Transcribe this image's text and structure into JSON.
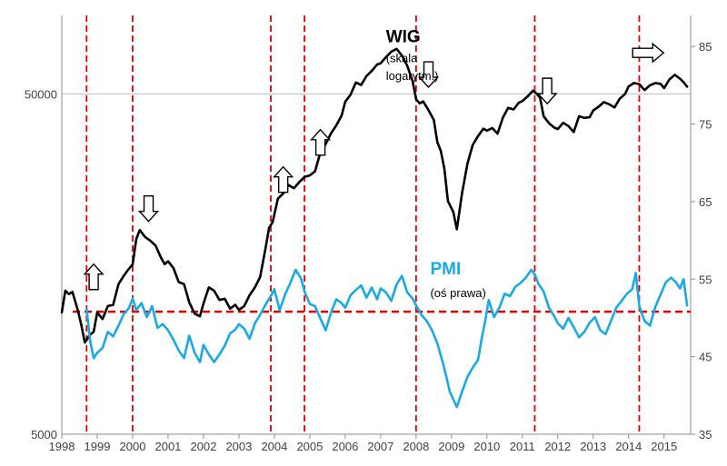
{
  "chart_data": {
    "type": "line",
    "title": "",
    "x_range": [
      1998,
      2015.75
    ],
    "x_ticks": [
      "1998",
      "1999",
      "2000",
      "2001",
      "2002",
      "2003",
      "2004",
      "2005",
      "2006",
      "2007",
      "2008",
      "2009",
      "2010",
      "2011",
      "2012",
      "2013",
      "2014",
      "2015"
    ],
    "left_axis": {
      "scale": "log",
      "range": [
        5000,
        85000
      ],
      "ticks": [
        5000,
        50000
      ],
      "tick_labels": [
        "5000",
        "50000"
      ]
    },
    "right_axis": {
      "scale": "linear",
      "range": [
        35,
        89
      ],
      "ticks": [
        35,
        45,
        55,
        65,
        75,
        85
      ],
      "tick_labels": [
        "35",
        "45",
        "55",
        "65",
        "75",
        "85"
      ]
    },
    "reference_line": {
      "axis": "right",
      "value": 50.8,
      "color": "#e00000",
      "style": "dashed"
    },
    "vertical_markers": [
      1998.7,
      2000.0,
      2003.9,
      2004.85,
      2008.0,
      2011.35,
      2014.3
    ],
    "arrows": [
      {
        "x": 1998.9,
        "dir": "up",
        "axis": "left",
        "value": 14500
      },
      {
        "x": 2000.45,
        "dir": "down",
        "axis": "left",
        "value": 23000
      },
      {
        "x": 2004.25,
        "dir": "up",
        "axis": "left",
        "value": 28000
      },
      {
        "x": 2005.3,
        "dir": "up",
        "axis": "left",
        "value": 36000
      },
      {
        "x": 2008.35,
        "dir": "down",
        "axis": "left",
        "value": 57000
      },
      {
        "x": 2011.7,
        "dir": "down",
        "axis": "left",
        "value": 51000
      },
      {
        "x": 2014.55,
        "dir": "right",
        "axis": "left",
        "value": 66000
      }
    ],
    "series": [
      {
        "name": "WIG",
        "axis": "left",
        "color": "#000000",
        "x": [
          1998.0,
          1998.1,
          1998.2,
          1998.3,
          1998.45,
          1998.55,
          1998.65,
          1998.8,
          1998.9,
          1999.0,
          1999.15,
          1999.3,
          1999.45,
          1999.6,
          1999.75,
          1999.85,
          2000.0,
          2000.1,
          2000.2,
          2000.35,
          2000.5,
          2000.65,
          2000.8,
          2000.9,
          2001.0,
          2001.15,
          2001.3,
          2001.45,
          2001.6,
          2001.75,
          2001.9,
          2002.0,
          2002.15,
          2002.3,
          2002.45,
          2002.6,
          2002.75,
          2002.9,
          2003.0,
          2003.15,
          2003.3,
          2003.45,
          2003.6,
          2003.75,
          2003.85,
          2003.95,
          2004.1,
          2004.25,
          2004.4,
          2004.55,
          2004.7,
          2004.85,
          2005.0,
          2005.15,
          2005.3,
          2005.45,
          2005.6,
          2005.75,
          2005.9,
          2006.0,
          2006.15,
          2006.3,
          2006.45,
          2006.6,
          2006.75,
          2006.9,
          2007.0,
          2007.15,
          2007.3,
          2007.45,
          2007.6,
          2007.75,
          2007.9,
          2008.0,
          2008.1,
          2008.2,
          2008.35,
          2008.5,
          2008.6,
          2008.7,
          2008.8,
          2008.9,
          2009.05,
          2009.15,
          2009.3,
          2009.45,
          2009.6,
          2009.75,
          2009.9,
          2010.0,
          2010.15,
          2010.3,
          2010.45,
          2010.6,
          2010.75,
          2010.9,
          2011.0,
          2011.15,
          2011.3,
          2011.4,
          2011.5,
          2011.6,
          2011.75,
          2011.9,
          2012.0,
          2012.15,
          2012.3,
          2012.45,
          2012.6,
          2012.75,
          2012.9,
          2013.0,
          2013.15,
          2013.3,
          2013.45,
          2013.6,
          2013.75,
          2013.9,
          2014.0,
          2014.15,
          2014.3,
          2014.45,
          2014.6,
          2014.75,
          2014.9,
          2015.0,
          2015.15,
          2015.3,
          2015.45,
          2015.55,
          2015.65
        ],
        "values": [
          11400,
          13200,
          12900,
          13100,
          11600,
          10500,
          9300,
          9800,
          10000,
          11400,
          10900,
          11900,
          12000,
          13800,
          14600,
          15100,
          15800,
          18700,
          19900,
          19000,
          18500,
          17900,
          16500,
          15800,
          16100,
          15400,
          14000,
          13800,
          12200,
          11300,
          11100,
          12100,
          13500,
          13200,
          12400,
          12500,
          11700,
          12000,
          11600,
          11900,
          12800,
          13500,
          14500,
          17600,
          20200,
          21000,
          24600,
          25500,
          27000,
          26400,
          27500,
          28500,
          28800,
          29600,
          33700,
          35600,
          38300,
          40400,
          43200,
          47400,
          49700,
          54000,
          53100,
          56400,
          58400,
          61000,
          61500,
          64100,
          66500,
          67800,
          64800,
          60500,
          54500,
          48200,
          46900,
          47500,
          44800,
          41900,
          36000,
          34000,
          30100,
          24200,
          22500,
          20000,
          25600,
          31200,
          35400,
          37600,
          39500,
          39000,
          39700,
          38200,
          42600,
          45500,
          45000,
          47100,
          47600,
          49200,
          51100,
          50100,
          48700,
          43000,
          41000,
          39800,
          39400,
          41100,
          40200,
          38600,
          43000,
          42500,
          42700,
          44700,
          45800,
          47300,
          46600,
          45600,
          48400,
          50000,
          52600,
          53800,
          53400,
          51300,
          53000,
          53800,
          53500,
          52000,
          55100,
          56900,
          55400,
          54100,
          52500
        ]
      },
      {
        "name": "PMI",
        "axis": "right",
        "color": "#19a9e5",
        "x": [
          1998.7,
          1998.8,
          1998.9,
          1999.0,
          1999.15,
          1999.3,
          1999.45,
          1999.6,
          1999.75,
          1999.9,
          2000.0,
          2000.1,
          2000.25,
          2000.4,
          2000.55,
          2000.7,
          2000.85,
          2001.0,
          2001.15,
          2001.3,
          2001.45,
          2001.6,
          2001.75,
          2001.9,
          2002.0,
          2002.15,
          2002.3,
          2002.45,
          2002.6,
          2002.75,
          2002.9,
          2003.0,
          2003.15,
          2003.3,
          2003.45,
          2003.6,
          2003.75,
          2003.9,
          2004.0,
          2004.15,
          2004.3,
          2004.45,
          2004.6,
          2004.75,
          2004.85,
          2005.0,
          2005.15,
          2005.3,
          2005.45,
          2005.6,
          2005.75,
          2005.9,
          2006.0,
          2006.15,
          2006.3,
          2006.45,
          2006.6,
          2006.75,
          2006.9,
          2007.0,
          2007.15,
          2007.3,
          2007.45,
          2007.6,
          2007.75,
          2007.9,
          2008.0,
          2008.15,
          2008.3,
          2008.45,
          2008.6,
          2008.75,
          2008.85,
          2008.95,
          2009.05,
          2009.15,
          2009.3,
          2009.45,
          2009.6,
          2009.75,
          2009.85,
          2009.95,
          2010.05,
          2010.2,
          2010.35,
          2010.5,
          2010.65,
          2010.8,
          2010.95,
          2011.1,
          2011.25,
          2011.35,
          2011.45,
          2011.6,
          2011.75,
          2011.9,
          2012.0,
          2012.15,
          2012.3,
          2012.45,
          2012.6,
          2012.75,
          2012.9,
          2013.05,
          2013.2,
          2013.35,
          2013.5,
          2013.65,
          2013.8,
          2013.95,
          2014.1,
          2014.2,
          2014.3,
          2014.45,
          2014.6,
          2014.75,
          2014.9,
          2015.05,
          2015.2,
          2015.35,
          2015.45,
          2015.55,
          2015.65
        ],
        "values": [
          51.2,
          47.0,
          44.8,
          45.5,
          46.1,
          48.2,
          47.6,
          49.0,
          50.5,
          51.3,
          52.5,
          51.0,
          51.9,
          50.1,
          51.5,
          48.7,
          49.2,
          48.4,
          47.2,
          45.8,
          44.8,
          47.7,
          45.5,
          44.3,
          46.5,
          45.3,
          44.3,
          45.3,
          46.4,
          48.0,
          48.5,
          49.2,
          48.6,
          47.3,
          49.3,
          50.4,
          51.7,
          52.8,
          53.7,
          51.0,
          53.0,
          54.5,
          56.2,
          55.1,
          53.4,
          51.8,
          51.5,
          49.9,
          48.4,
          50.7,
          52.4,
          51.9,
          51.3,
          52.9,
          53.6,
          54.2,
          52.6,
          53.9,
          52.4,
          53.8,
          53.3,
          52.2,
          54.3,
          55.4,
          53.3,
          52.5,
          51.6,
          50.4,
          49.6,
          48.4,
          46.7,
          44.3,
          42.5,
          40.5,
          39.5,
          38.5,
          40.5,
          42.4,
          43.6,
          44.6,
          47.3,
          49.6,
          52.3,
          50.1,
          51.3,
          53.1,
          52.8,
          54.0,
          54.5,
          55.2,
          56.2,
          55.6,
          54.4,
          53.4,
          51.3,
          50.2,
          49.3,
          48.6,
          50.0,
          48.8,
          47.5,
          48.2,
          49.4,
          50.1,
          48.4,
          47.9,
          49.6,
          51.3,
          52.2,
          53.1,
          53.7,
          55.8,
          51.5,
          49.6,
          49.0,
          51.4,
          53.0,
          54.6,
          55.2,
          54.5,
          53.8,
          55.0,
          51.6
        ]
      }
    ],
    "annotations": [
      {
        "text": "WIG",
        "style": "bold-large",
        "x": 2007.15,
        "axis": "left",
        "value": 71000
      },
      {
        "text": "(skala",
        "style": "small",
        "x": 2007.15,
        "axis": "left",
        "value": 62000
      },
      {
        "text": "logarytm.)",
        "style": "small",
        "x": 2007.15,
        "axis": "left",
        "value": 55000
      },
      {
        "text": "PMI",
        "style": "pmi-large",
        "x": 2008.4,
        "axis": "right",
        "value": 55.6
      },
      {
        "text": "(oś prawa)",
        "style": "small",
        "x": 2008.4,
        "axis": "right",
        "value": 52.7
      }
    ]
  }
}
